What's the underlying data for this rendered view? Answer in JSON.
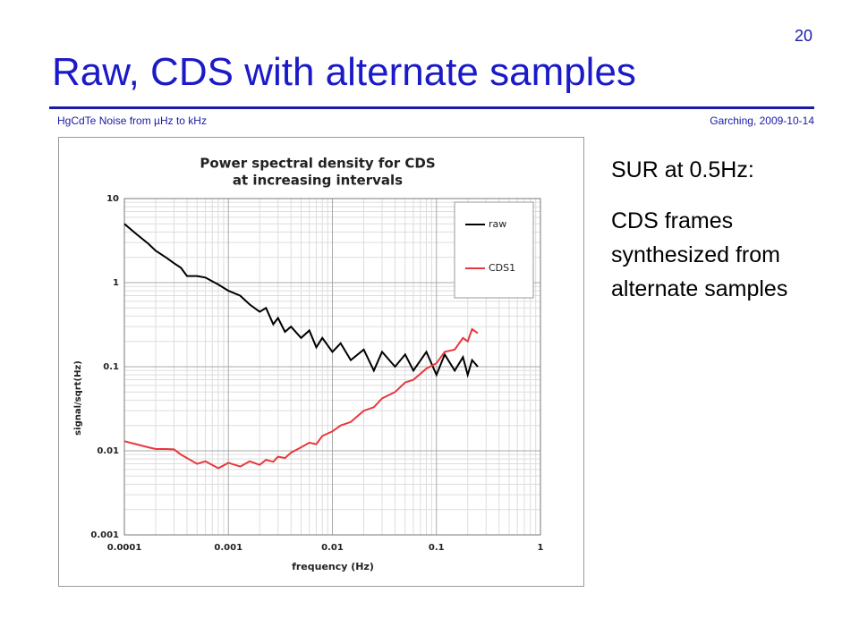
{
  "slide": {
    "page_number": "20",
    "title": "Raw,  CDS with alternate samples",
    "footer_left": "HgCdTe Noise from µHz to kHz",
    "footer_right": "Garching, 2009-10-14",
    "notes": [
      "SUR at 0.5Hz:"
    ],
    "body_lines": [
      "CDS frames",
      "synthesized from",
      "alternate samples"
    ]
  },
  "chart_data": {
    "type": "line",
    "title": [
      "Power spectral density for CDS",
      "at increasing intervals"
    ],
    "x_label": "frequency (Hz)",
    "y_label": "signal/sqrt(Hz)",
    "xscale": "log",
    "yscale": "log",
    "grid": true,
    "minor_grid": true,
    "legend": "upper right",
    "xlim": [
      0.0001,
      1
    ],
    "ylim": [
      0.001,
      10
    ],
    "xticks": [
      0.0001,
      0.001,
      0.01,
      0.1,
      1
    ],
    "yticks": [
      0.001,
      0.01,
      0.1,
      1,
      10
    ],
    "series": [
      {
        "name": "raw",
        "color": "#000000",
        "x": [
          0.0001,
          0.00013,
          0.00017,
          0.0002,
          0.00025,
          0.0003,
          0.00035,
          0.0004,
          0.0005,
          0.0006,
          0.0008,
          0.001,
          0.0013,
          0.0016,
          0.002,
          0.0023,
          0.0027,
          0.003,
          0.0035,
          0.004,
          0.005,
          0.006,
          0.007,
          0.008,
          0.01,
          0.012,
          0.015,
          0.02,
          0.025,
          0.03,
          0.04,
          0.05,
          0.06,
          0.08,
          0.1,
          0.12,
          0.15,
          0.18,
          0.2,
          0.22,
          0.25
        ],
        "values": [
          5,
          3.8,
          2.9,
          2.4,
          2.0,
          1.7,
          1.5,
          1.2,
          1.2,
          1.15,
          0.95,
          0.8,
          0.7,
          0.55,
          0.45,
          0.5,
          0.32,
          0.38,
          0.26,
          0.3,
          0.22,
          0.27,
          0.17,
          0.22,
          0.15,
          0.19,
          0.12,
          0.16,
          0.09,
          0.15,
          0.1,
          0.14,
          0.09,
          0.15,
          0.08,
          0.14,
          0.09,
          0.13,
          0.08,
          0.12,
          0.1
        ]
      },
      {
        "name": "CDS1",
        "color": "#e8383d",
        "x": [
          0.0001,
          0.00013,
          0.00017,
          0.0002,
          0.00025,
          0.0003,
          0.00035,
          0.0004,
          0.0005,
          0.0006,
          0.0008,
          0.001,
          0.0013,
          0.0016,
          0.002,
          0.0023,
          0.0027,
          0.003,
          0.0035,
          0.004,
          0.005,
          0.006,
          0.007,
          0.008,
          0.01,
          0.012,
          0.015,
          0.02,
          0.025,
          0.03,
          0.04,
          0.05,
          0.06,
          0.08,
          0.1,
          0.12,
          0.15,
          0.18,
          0.2,
          0.22,
          0.25
        ],
        "values": [
          0.013,
          0.012,
          0.011,
          0.0105,
          0.0105,
          0.0104,
          0.009,
          0.0082,
          0.007,
          0.0075,
          0.0062,
          0.0072,
          0.0065,
          0.0075,
          0.0068,
          0.0078,
          0.0074,
          0.0085,
          0.0082,
          0.0095,
          0.011,
          0.0125,
          0.012,
          0.015,
          0.017,
          0.02,
          0.022,
          0.03,
          0.033,
          0.042,
          0.05,
          0.065,
          0.07,
          0.095,
          0.11,
          0.15,
          0.16,
          0.22,
          0.2,
          0.28,
          0.25
        ]
      }
    ]
  }
}
